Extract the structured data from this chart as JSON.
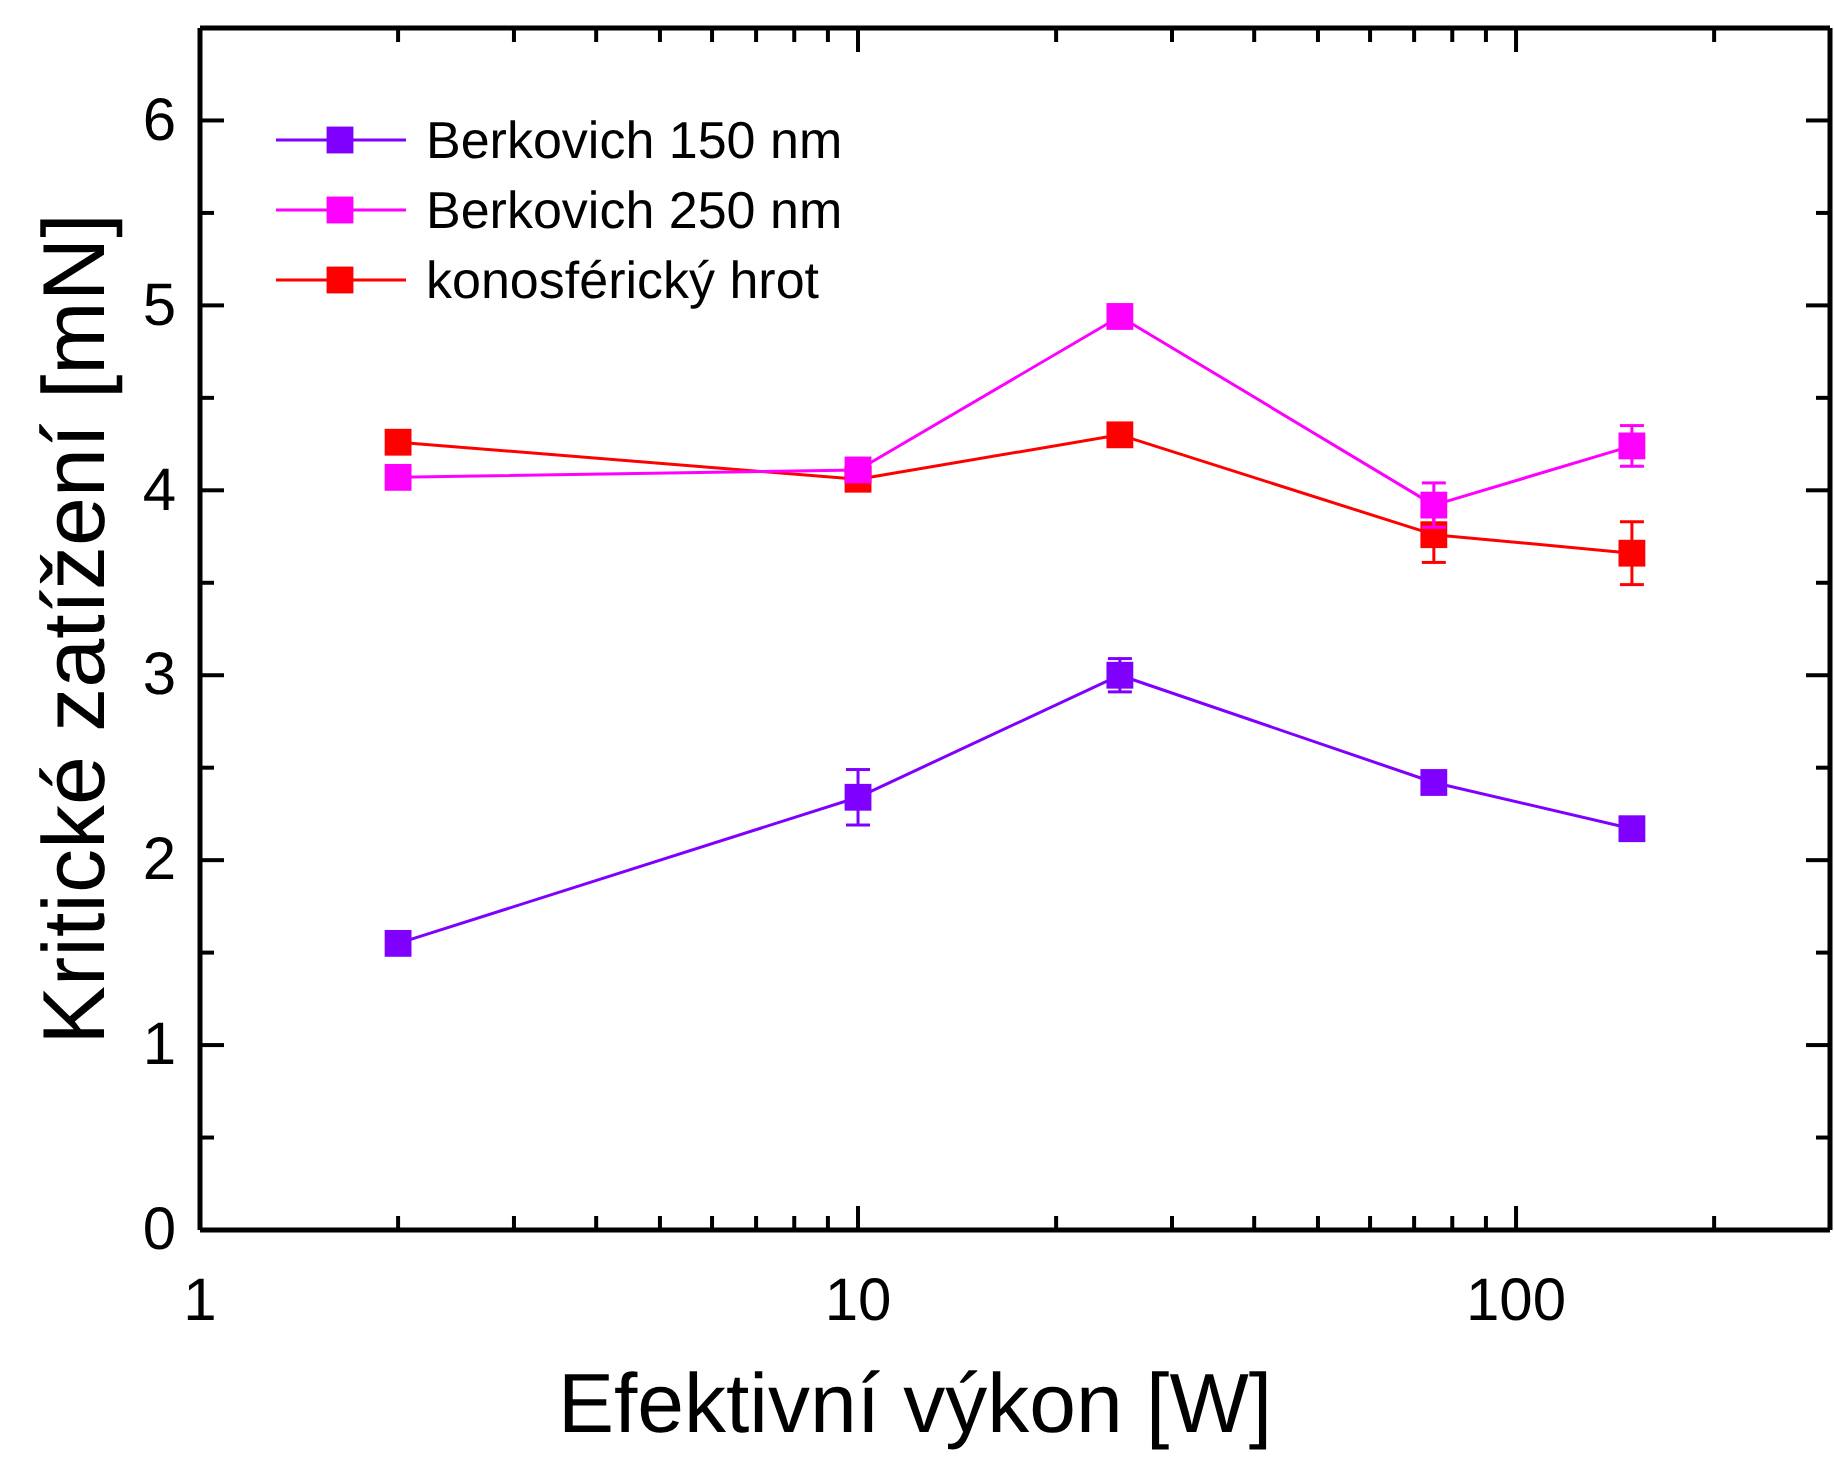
{
  "chart_data": {
    "type": "line",
    "xlabel": "Efektivní výkon [W]",
    "ylabel": "Kritické zatížení [mN]",
    "log": "x",
    "xlim": [
      1,
      300
    ],
    "ylim": [
      0,
      6.5
    ],
    "xticks": [
      1,
      {
        "value": 2,
        "label": null
      },
      {
        "value": 3,
        "label": null
      },
      {
        "value": 4,
        "label": null
      },
      {
        "value": 5,
        "label": null
      },
      {
        "value": 6,
        "label": null
      },
      {
        "value": 7,
        "label": null
      },
      {
        "value": 8,
        "label": null
      },
      {
        "value": 9,
        "label": null
      },
      10,
      {
        "value": 20,
        "label": null
      },
      {
        "value": 30,
        "label": null
      },
      {
        "value": 40,
        "label": null
      },
      {
        "value": 50,
        "label": null
      },
      {
        "value": 60,
        "label": null
      },
      {
        "value": 70,
        "label": null
      },
      {
        "value": 80,
        "label": null
      },
      {
        "value": 90,
        "label": null
      },
      100,
      {
        "value": 200,
        "label": null
      }
    ],
    "yticks": [
      0,
      {
        "value": 0.5,
        "label": null
      },
      1,
      {
        "value": 1.5,
        "label": null
      },
      2,
      {
        "value": 2.5,
        "label": null
      },
      3,
      {
        "value": 3.5,
        "label": null
      },
      4,
      {
        "value": 4.5,
        "label": null
      },
      5,
      {
        "value": 5.5,
        "label": null
      },
      6
    ],
    "x": [
      2,
      10,
      25,
      75,
      150
    ],
    "marker": "square",
    "legend": "top left",
    "grid": false,
    "series": [
      {
        "name": "Berkovich 150 nm",
        "color": "#8000ff",
        "values": [
          1.55,
          2.34,
          3.0,
          2.42,
          2.17
        ],
        "errors": [
          null,
          0.15,
          0.09,
          null,
          null
        ]
      },
      {
        "name": "Berkovich 250 nm",
        "color": "#ff00ff",
        "values": [
          4.07,
          4.11,
          4.94,
          3.92,
          4.24
        ],
        "errors": [
          null,
          null,
          null,
          0.12,
          0.11
        ]
      },
      {
        "name": "konosférický hrot",
        "color": "#ff0000",
        "values": [
          4.26,
          4.06,
          4.3,
          3.76,
          3.66
        ],
        "errors": [
          null,
          null,
          0.05,
          0.15,
          0.17
        ]
      }
    ]
  }
}
